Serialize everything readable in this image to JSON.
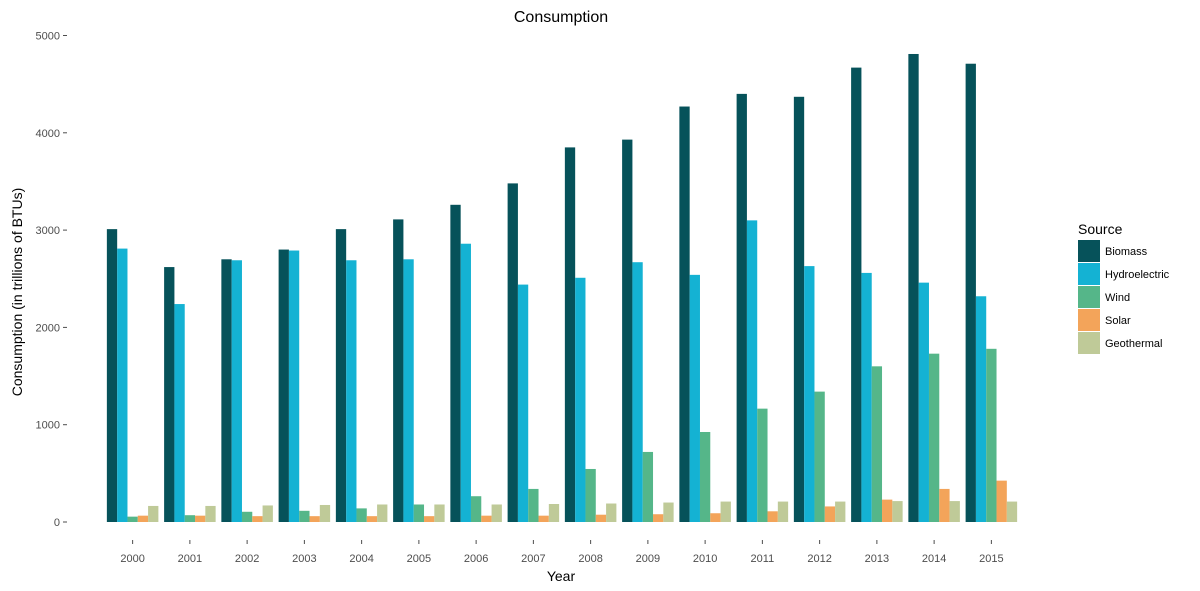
{
  "chart_data": {
    "type": "bar",
    "title": "Consumption",
    "xlabel": "Year",
    "ylabel": "Consumption (in trillions of BTUs)",
    "ylim": [
      0,
      5000
    ],
    "yticks": [
      0,
      1000,
      2000,
      3000,
      4000,
      5000
    ],
    "grid": false,
    "legend_title": "Source",
    "legend_position": "right",
    "categories": [
      "2000",
      "2001",
      "2002",
      "2003",
      "2004",
      "2005",
      "2006",
      "2007",
      "2008",
      "2009",
      "2010",
      "2011",
      "2012",
      "2013",
      "2014",
      "2015"
    ],
    "series": [
      {
        "name": "Biomass",
        "color": "#06525a",
        "values": [
          3010,
          2620,
          2700,
          2800,
          3010,
          3110,
          3260,
          3480,
          3850,
          3930,
          4270,
          4400,
          4370,
          4670,
          4810,
          4710
        ]
      },
      {
        "name": "Hydroelectric",
        "color": "#14b2d3",
        "values": [
          2810,
          2240,
          2690,
          2790,
          2690,
          2700,
          2860,
          2440,
          2510,
          2670,
          2540,
          3100,
          2630,
          2560,
          2460,
          2320
        ]
      },
      {
        "name": "Wind",
        "color": "#55b689",
        "values": [
          55,
          70,
          105,
          115,
          140,
          180,
          265,
          340,
          545,
          720,
          925,
          1165,
          1340,
          1600,
          1730,
          1780
        ]
      },
      {
        "name": "Solar",
        "color": "#f3a45a",
        "values": [
          65,
          65,
          60,
          60,
          60,
          60,
          65,
          65,
          75,
          80,
          90,
          110,
          160,
          230,
          340,
          425
        ]
      },
      {
        "name": "Geothermal",
        "color": "#bfca98",
        "values": [
          165,
          165,
          170,
          175,
          180,
          180,
          180,
          185,
          190,
          200,
          210,
          210,
          210,
          215,
          215,
          210
        ]
      }
    ]
  }
}
